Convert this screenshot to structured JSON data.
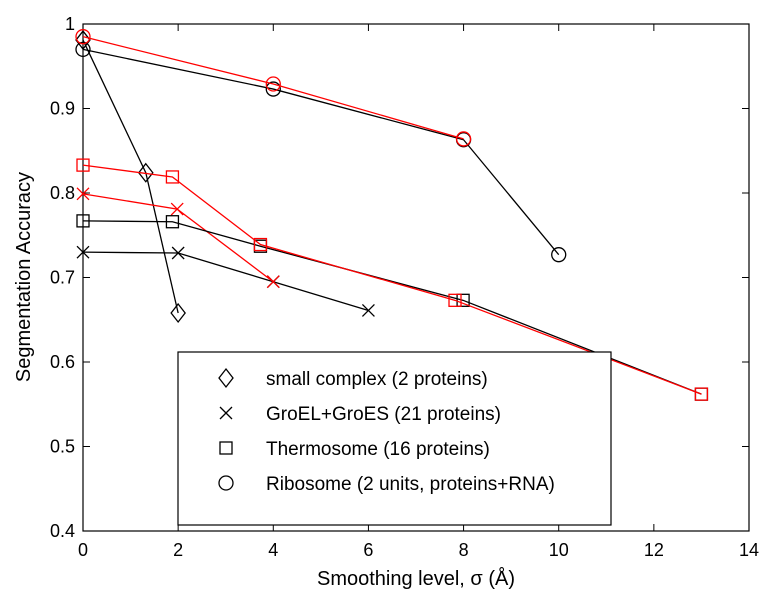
{
  "chart_data": {
    "type": "line",
    "title": "",
    "xlabel": "Smoothing level, σ (Å)",
    "ylabel": "Segmentation Accuracy",
    "xlim": [
      0,
      14
    ],
    "ylim": [
      0.4,
      1.0
    ],
    "xticks": [
      0,
      2,
      4,
      6,
      8,
      10,
      12,
      14
    ],
    "yticks": [
      0.4,
      0.5,
      0.6,
      0.7,
      0.8,
      0.9,
      1.0
    ],
    "xtick_labels": [
      "0",
      "2",
      "4",
      "6",
      "8",
      "10",
      "12",
      "14"
    ],
    "ytick_labels": [
      "0.4",
      "0.5",
      "0.6",
      "0.7",
      "0.8",
      "0.9",
      "1"
    ],
    "grid": false,
    "legend_position": "bottom-center",
    "legend": [
      {
        "label": "small complex (2 proteins)",
        "marker": "diamond"
      },
      {
        "label": "GroEL+GroES (21 proteins)",
        "marker": "x"
      },
      {
        "label": "Thermosome (16 proteins)",
        "marker": "square"
      },
      {
        "label": "Ribosome (2 units, proteins+RNA)",
        "marker": "circle"
      }
    ],
    "series": [
      {
        "name": "small complex (black)",
        "marker": "diamond",
        "color": "#000000",
        "x": [
          0,
          1.32,
          2
        ],
        "y": [
          0.981,
          0.824,
          0.658
        ]
      },
      {
        "name": "GroEL+GroES (black)",
        "marker": "x",
        "color": "#000000",
        "x": [
          0,
          2,
          4,
          6
        ],
        "y": [
          0.73,
          0.729,
          0.695,
          0.661
        ]
      },
      {
        "name": "GroEL+GroES (red)",
        "marker": "x",
        "color": "#ff0000",
        "x": [
          0,
          1.98,
          4
        ],
        "y": [
          0.799,
          0.781,
          0.695
        ]
      },
      {
        "name": "Thermosome (black)",
        "marker": "square",
        "color": "#000000",
        "x": [
          0,
          1.88,
          3.73,
          7.99,
          13
        ],
        "y": [
          0.767,
          0.766,
          0.737,
          0.673,
          0.562
        ]
      },
      {
        "name": "Thermosome (red)",
        "marker": "square",
        "color": "#ff0000",
        "x": [
          0,
          1.88,
          3.73,
          7.82,
          13
        ],
        "y": [
          0.833,
          0.819,
          0.739,
          0.673,
          0.562
        ]
      },
      {
        "name": "Ribosome (black)",
        "marker": "circle",
        "color": "#000000",
        "x": [
          0,
          4,
          8,
          10
        ],
        "y": [
          0.97,
          0.923,
          0.863,
          0.727
        ]
      },
      {
        "name": "Ribosome (red)",
        "marker": "circle",
        "color": "#ff0000",
        "x": [
          0,
          4,
          8
        ],
        "y": [
          0.985,
          0.929,
          0.864
        ]
      }
    ]
  }
}
